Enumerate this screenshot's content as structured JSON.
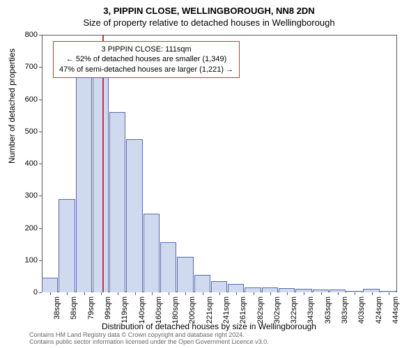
{
  "chart": {
    "type": "histogram",
    "title": "3, PIPPIN CLOSE, WELLINGBOROUGH, NN8 2DN",
    "subtitle": "Size of property relative to detached houses in Wellingborough",
    "ylabel": "Number of detached properties",
    "xlabel": "Distribution of detached houses by size in Wellingborough",
    "ylim": [
      0,
      800
    ],
    "ytick_step": 100,
    "yticks": [
      0,
      100,
      200,
      300,
      400,
      500,
      600,
      700,
      800
    ],
    "x_categories": [
      "38sqm",
      "58sqm",
      "79sqm",
      "99sqm",
      "119sqm",
      "140sqm",
      "160sqm",
      "180sqm",
      "200sqm",
      "221sqm",
      "241sqm",
      "261sqm",
      "282sqm",
      "302sqm",
      "322sqm",
      "343sqm",
      "363sqm",
      "383sqm",
      "403sqm",
      "424sqm",
      "444sqm"
    ],
    "values": [
      45,
      290,
      670,
      680,
      560,
      475,
      245,
      155,
      110,
      55,
      35,
      25,
      15,
      15,
      12,
      10,
      8,
      8,
      5,
      10,
      5
    ],
    "bar_fill": "#cfd9ef",
    "bar_border": "#5a6aa8",
    "background_color": "#ffffff",
    "axis_color": "#595959",
    "label_fontsize": 12,
    "tick_fontsize": 11,
    "title_fontsize": 13,
    "marker": {
      "position_index": 3,
      "fraction": 0.6,
      "color": "#cc3333"
    },
    "annotation": {
      "line1": "3 PIPPIN CLOSE: 111sqm",
      "line2": "← 52% of detached houses are smaller (1,349)",
      "line3": "47% of semi-detached houses are larger (1,221) →",
      "border_color": "#cc3333"
    }
  },
  "footer": {
    "line1": "Contains HM Land Registry data © Crown copyright and database right 2024.",
    "line2": "Contains public sector information licensed under the Open Government Licence v3.0."
  }
}
